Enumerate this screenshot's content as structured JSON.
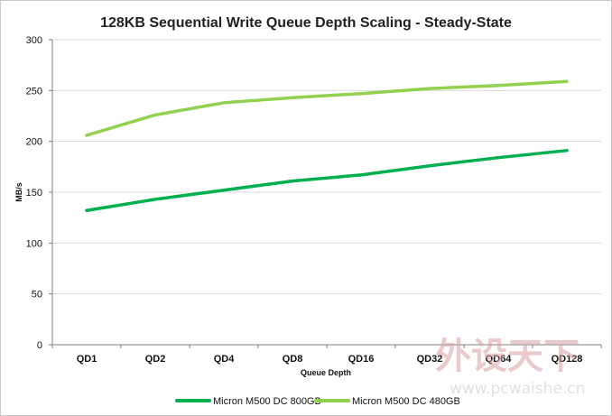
{
  "chart_data": {
    "type": "line",
    "title": "128KB Sequential Write Queue Depth Scaling - Steady-State",
    "xlabel": "Queue Depth",
    "ylabel": "MB/s",
    "categories": [
      "QD1",
      "QD2",
      "QD4",
      "QD8",
      "QD16",
      "QD32",
      "QD64",
      "QD128"
    ],
    "ylim": [
      0,
      300
    ],
    "yticks": [
      0,
      50,
      100,
      150,
      200,
      250,
      300
    ],
    "grid": true,
    "legend_position": "bottom",
    "series": [
      {
        "name": "Micron M500 DC 800GB",
        "color": "#00b050",
        "values": [
          132,
          143,
          152,
          161,
          167,
          176,
          184,
          191
        ]
      },
      {
        "name": "Micron M500 DC 480GB",
        "color": "#92d050",
        "values": [
          206,
          226,
          238,
          243,
          247,
          252,
          255,
          259
        ]
      }
    ]
  },
  "watermark": {
    "logo_text": "外设天下",
    "url": "www.pcwaishe.cn"
  }
}
